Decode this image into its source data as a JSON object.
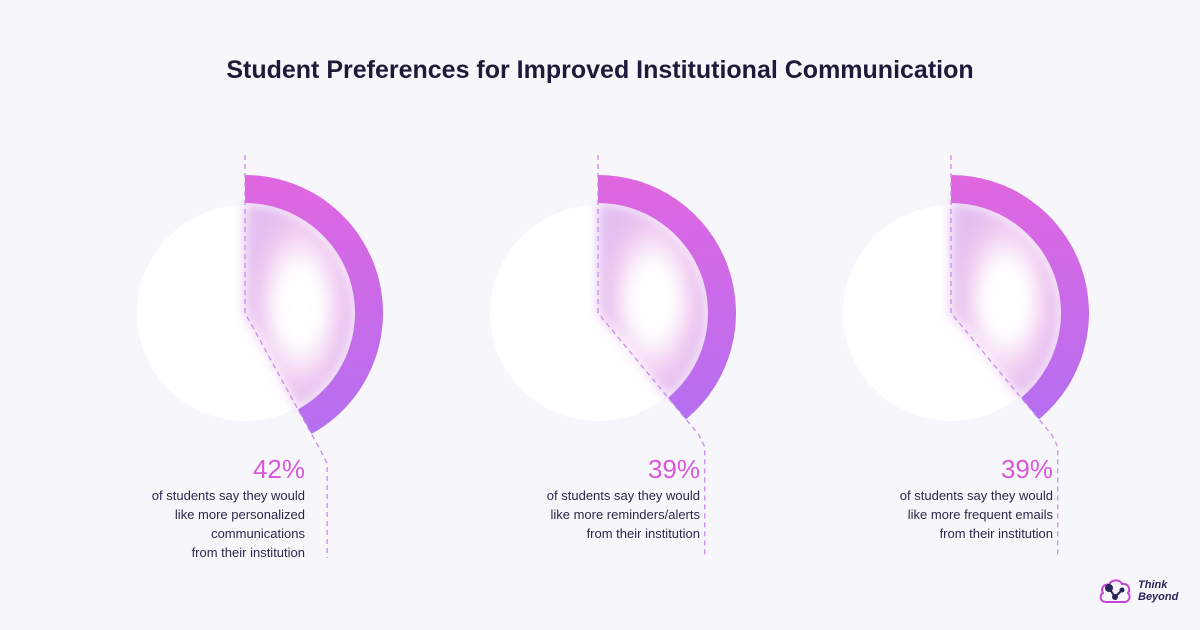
{
  "title": "Student Preferences for Improved Institutional Communication",
  "colors": {
    "background": "#f7f7fb",
    "arc_start": "#e066e0",
    "arc_end": "#b46ff0",
    "percent_text": "#d957d9",
    "dash": "#c98ce8"
  },
  "chart_data": {
    "type": "pie",
    "title": "Student Preferences for Improved Institutional Communication",
    "items": [
      {
        "value": 42,
        "label": "42%",
        "description": "of students say they would\nlike more personalized\ncommunications\nfrom their institution"
      },
      {
        "value": 39,
        "label": "39%",
        "description": "of students say they would\nlike more reminders/alerts\nfrom their institution"
      },
      {
        "value": 39,
        "label": "39%",
        "description": "of students say they would\nlike more frequent emails\nfrom their institution"
      }
    ]
  },
  "logo": {
    "text": "Think\nBeyond",
    "icon": "cloud-network-icon"
  }
}
